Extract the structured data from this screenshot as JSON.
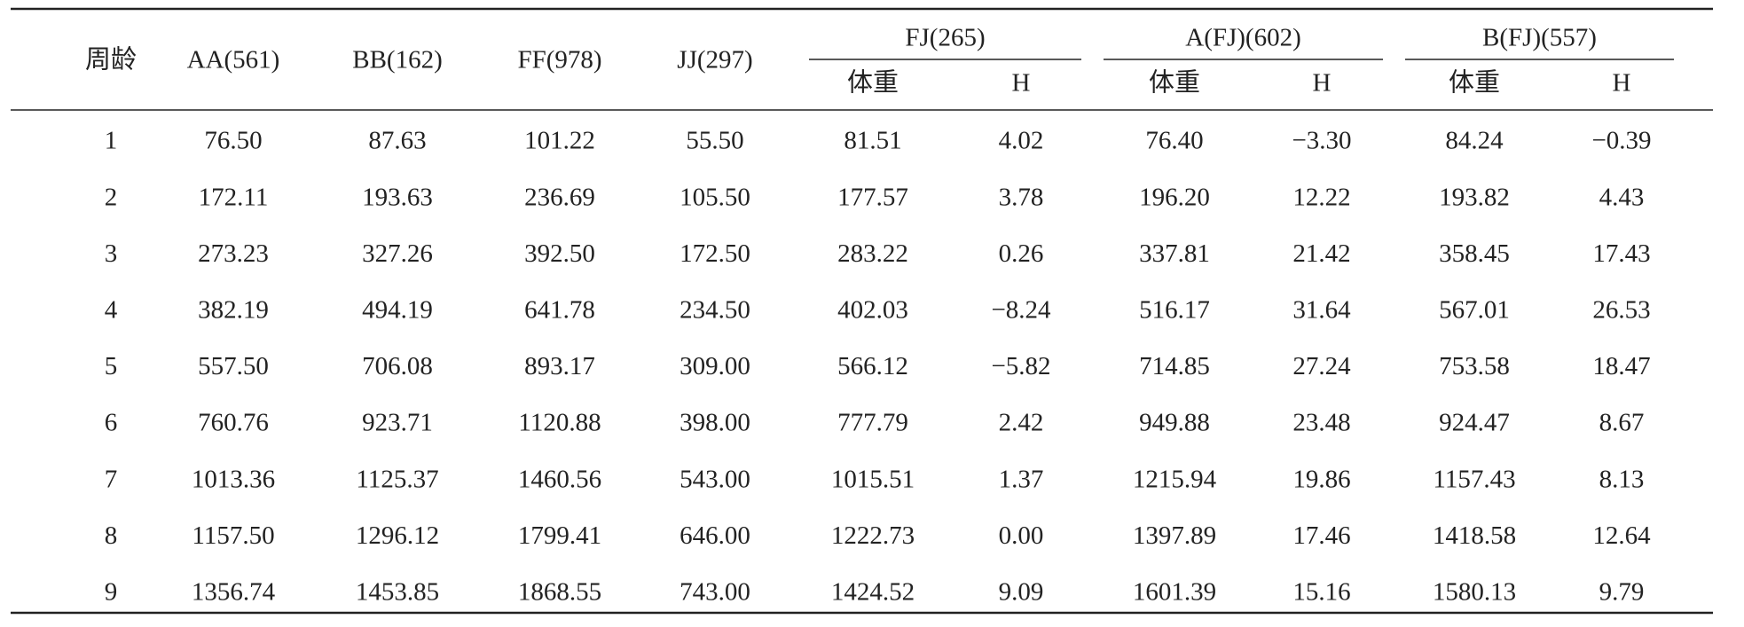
{
  "table": {
    "columns": [
      "周龄",
      "AA(561)",
      "BB(162)",
      "FF(978)",
      "JJ(297)"
    ],
    "groups": [
      {
        "label": "FJ(265)",
        "sub": [
          "体重",
          "H"
        ]
      },
      {
        "label": "A(FJ)(602)",
        "sub": [
          "体重",
          "H"
        ]
      },
      {
        "label": "B(FJ)(557)",
        "sub": [
          "体重",
          "H"
        ]
      }
    ],
    "rows": [
      [
        "1",
        "76.50",
        "87.63",
        "101.22",
        "55.50",
        "81.51",
        "4.02",
        "76.40",
        "−3.30",
        "84.24",
        "−0.39"
      ],
      [
        "2",
        "172.11",
        "193.63",
        "236.69",
        "105.50",
        "177.57",
        "3.78",
        "196.20",
        "12.22",
        "193.82",
        "4.43"
      ],
      [
        "3",
        "273.23",
        "327.26",
        "392.50",
        "172.50",
        "283.22",
        "0.26",
        "337.81",
        "21.42",
        "358.45",
        "17.43"
      ],
      [
        "4",
        "382.19",
        "494.19",
        "641.78",
        "234.50",
        "402.03",
        "−8.24",
        "516.17",
        "31.64",
        "567.01",
        "26.53"
      ],
      [
        "5",
        "557.50",
        "706.08",
        "893.17",
        "309.00",
        "566.12",
        "−5.82",
        "714.85",
        "27.24",
        "753.58",
        "18.47"
      ],
      [
        "6",
        "760.76",
        "923.71",
        "1120.88",
        "398.00",
        "777.79",
        "2.42",
        "949.88",
        "23.48",
        "924.47",
        "8.67"
      ],
      [
        "7",
        "1013.36",
        "1125.37",
        "1460.56",
        "543.00",
        "1015.51",
        "1.37",
        "1215.94",
        "19.86",
        "1157.43",
        "8.13"
      ],
      [
        "8",
        "1157.50",
        "1296.12",
        "1799.41",
        "646.00",
        "1222.73",
        "0.00",
        "1397.89",
        "17.46",
        "1418.58",
        "12.64"
      ],
      [
        "9",
        "1356.74",
        "1453.85",
        "1868.55",
        "743.00",
        "1424.52",
        "9.09",
        "1601.39",
        "15.16",
        "1580.13",
        "9.79"
      ]
    ]
  }
}
